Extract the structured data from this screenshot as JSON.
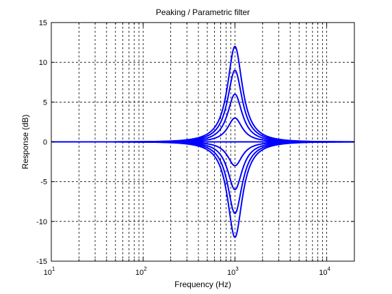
{
  "chart_data": {
    "type": "line",
    "title": "Peaking / Parametric filter",
    "xlabel": "Frequency (Hz)",
    "ylabel": "Response (dB)",
    "xscale": "log",
    "xlim": [
      10,
      20000
    ],
    "ylim": [
      -15,
      15
    ],
    "grid": true,
    "grid_style": "dashed",
    "line_color": "#0000ff",
    "x_ticks": [
      {
        "value": 10,
        "base": "10",
        "exp": "1"
      },
      {
        "value": 100,
        "base": "10",
        "exp": "2"
      },
      {
        "value": 1000,
        "base": "10",
        "exp": "3"
      },
      {
        "value": 10000,
        "base": "10",
        "exp": "4"
      }
    ],
    "y_ticks": [
      -15,
      -10,
      -5,
      0,
      5,
      10,
      15
    ],
    "center_frequency": 1000,
    "series": [
      {
        "peak_gain_db": 12
      },
      {
        "peak_gain_db": 9
      },
      {
        "peak_gain_db": 6
      },
      {
        "peak_gain_db": 3
      },
      {
        "peak_gain_db": 0
      },
      {
        "peak_gain_db": -3
      },
      {
        "peak_gain_db": -6
      },
      {
        "peak_gain_db": -9
      },
      {
        "peak_gain_db": -12
      }
    ]
  }
}
